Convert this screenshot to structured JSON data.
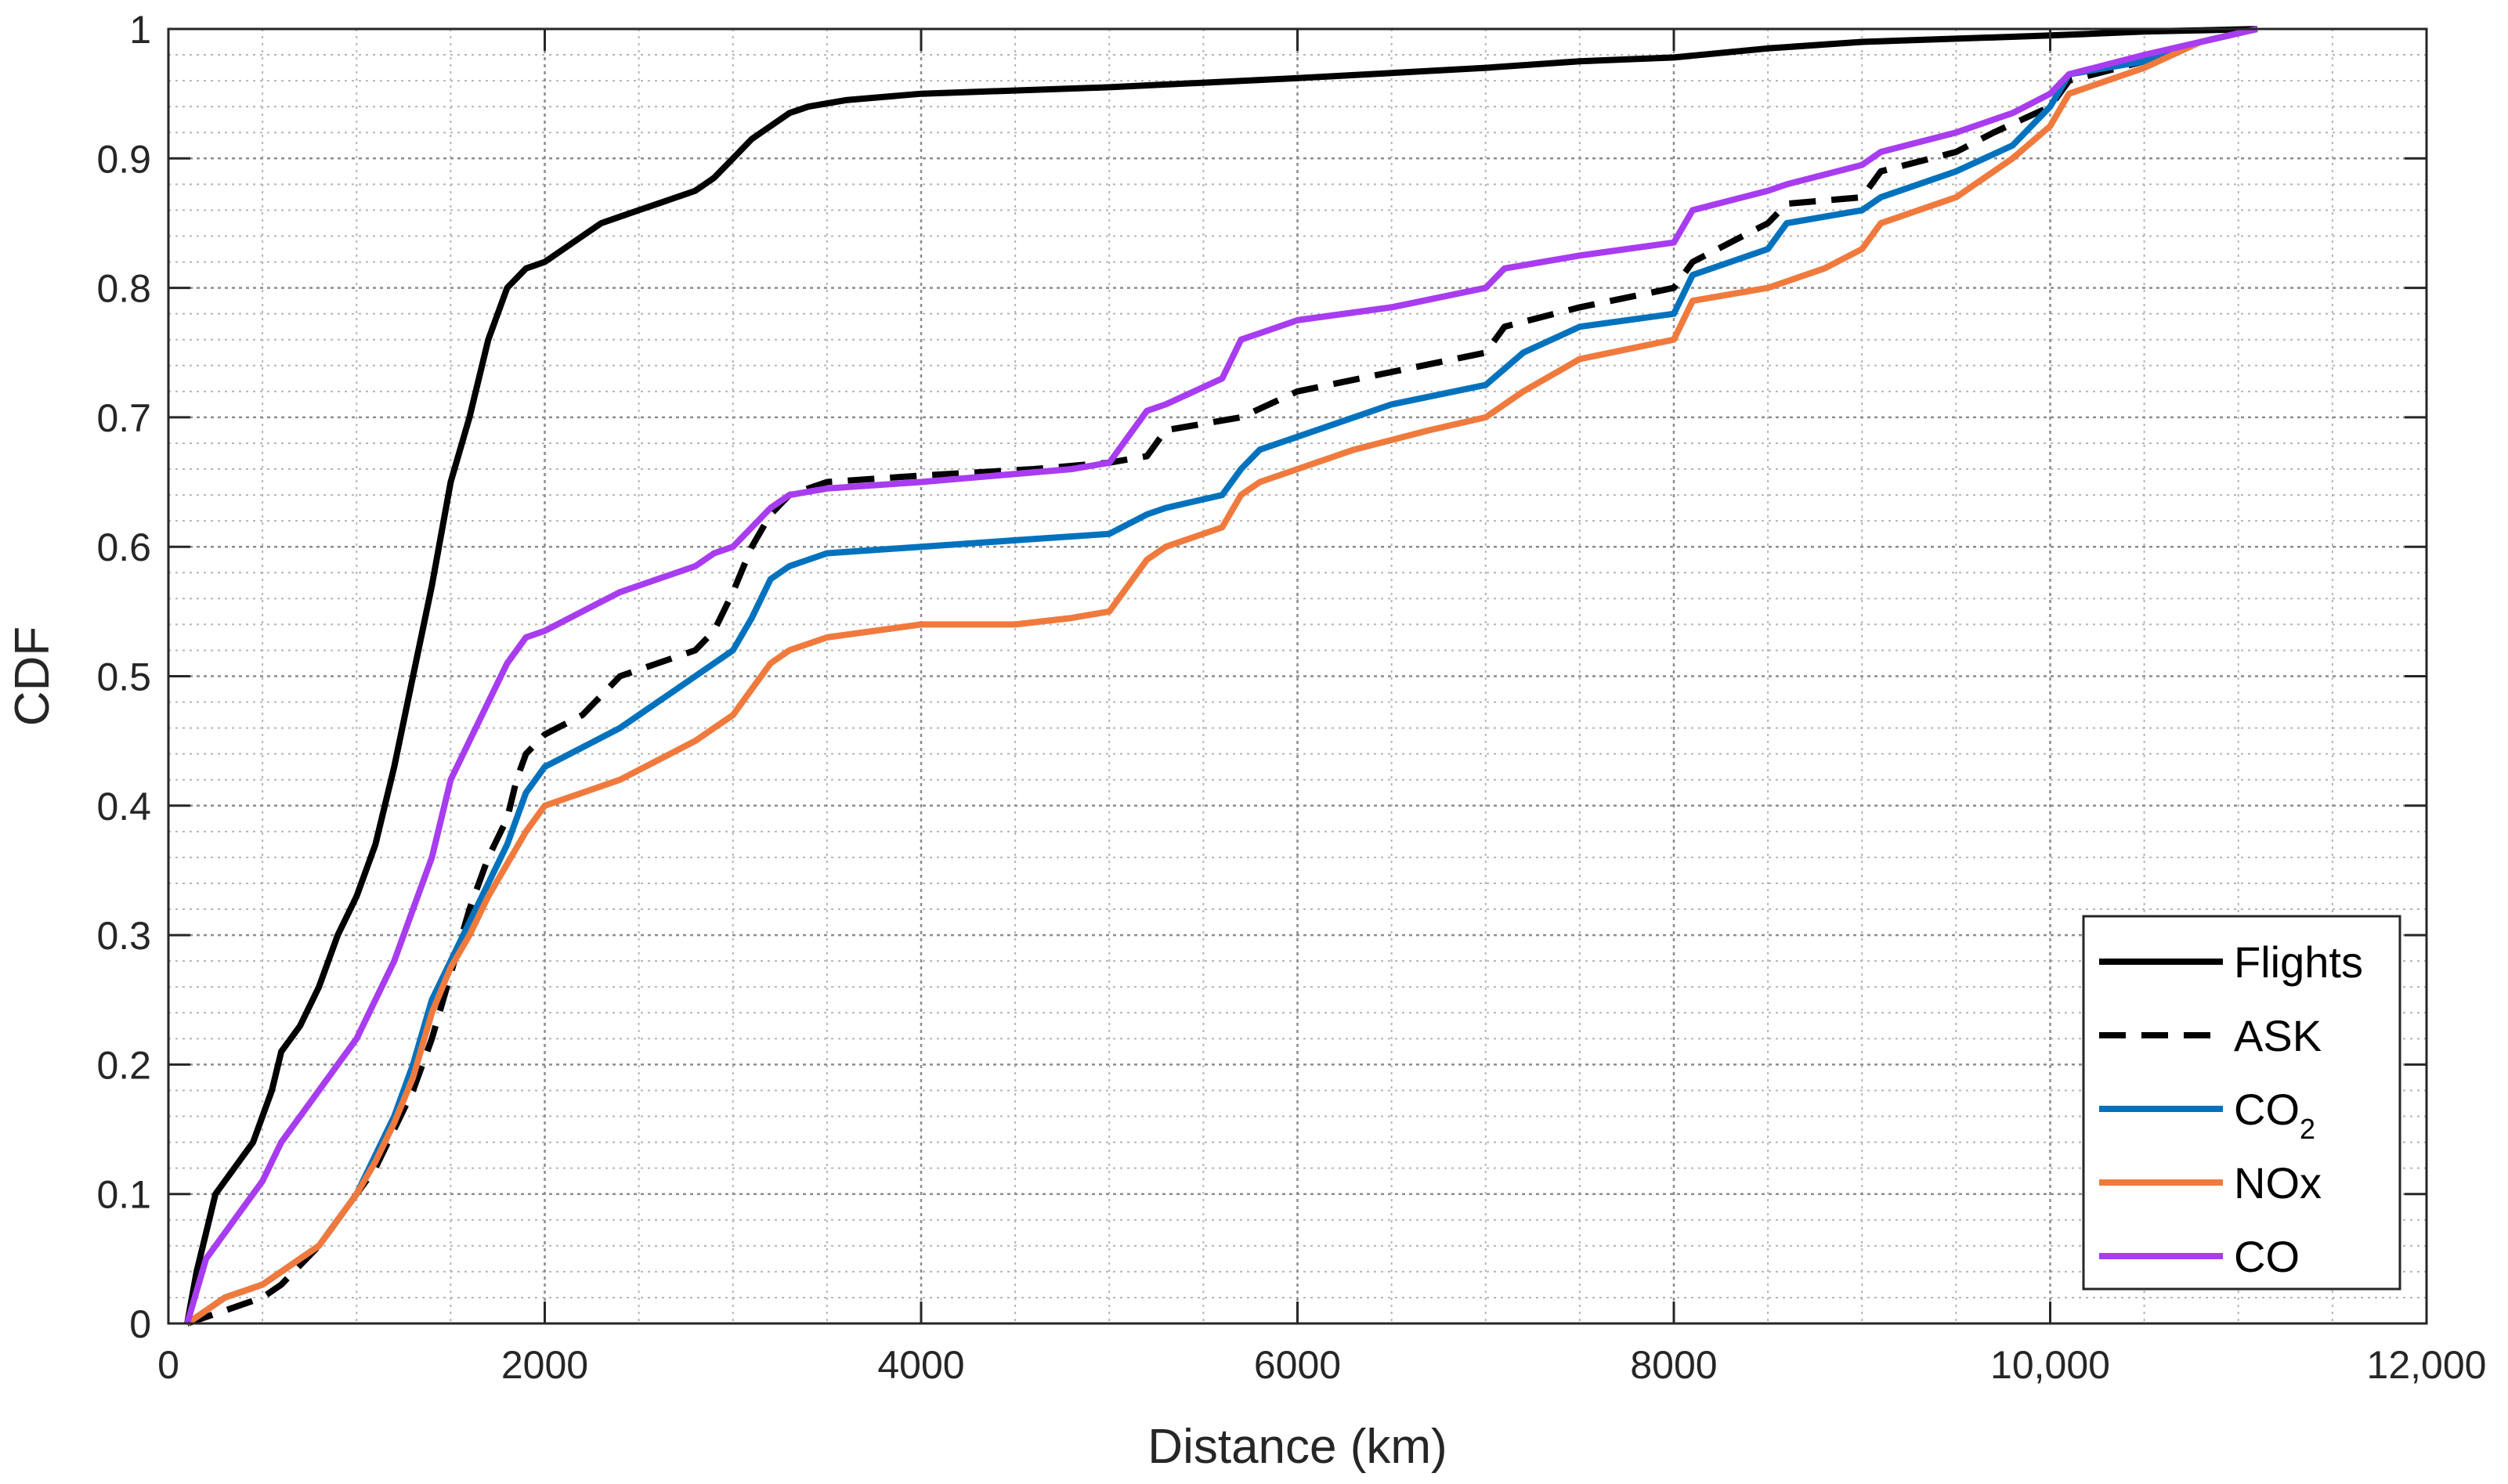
{
  "chart_data": {
    "type": "line",
    "xlabel": "Distance (km)",
    "ylabel": "CDF",
    "xlim": [
      0,
      12000
    ],
    "ylim": [
      0,
      1
    ],
    "x_ticks": [
      0,
      2000,
      4000,
      6000,
      8000,
      10000,
      12000
    ],
    "x_tick_labels": [
      "0",
      "2000",
      "4000",
      "6000",
      "8000",
      "10,000",
      "12,000"
    ],
    "y_ticks": [
      0,
      0.1,
      0.2,
      0.3,
      0.4,
      0.5,
      0.6,
      0.7,
      0.8,
      0.9,
      1
    ],
    "y_tick_labels": [
      "0",
      "0.1",
      "0.2",
      "0.3",
      "0.4",
      "0.5",
      "0.6",
      "0.7",
      "0.8",
      "0.9",
      "1"
    ],
    "grid": "major and minor, dotted",
    "legend_position": "bottom-right",
    "series": [
      {
        "name": "Flights",
        "color": "#000000",
        "dash": "solid",
        "x": [
          100,
          150,
          200,
          250,
          300,
          400,
          450,
          500,
          550,
          600,
          700,
          800,
          900,
          1000,
          1100,
          1200,
          1300,
          1400,
          1500,
          1600,
          1700,
          1800,
          1900,
          2000,
          2100,
          2200,
          2300,
          2400,
          2500,
          2600,
          2700,
          2800,
          2900,
          3000,
          3100,
          3200,
          3300,
          3400,
          3600,
          4000,
          5000,
          6000,
          7000,
          7500,
          8000,
          8500,
          9000,
          10000,
          10500,
          10800,
          11100
        ],
        "y": [
          0,
          0.04,
          0.07,
          0.1,
          0.11,
          0.13,
          0.14,
          0.16,
          0.18,
          0.21,
          0.23,
          0.26,
          0.3,
          0.33,
          0.37,
          0.43,
          0.5,
          0.57,
          0.65,
          0.7,
          0.76,
          0.8,
          0.815,
          0.82,
          0.83,
          0.84,
          0.85,
          0.855,
          0.86,
          0.865,
          0.87,
          0.875,
          0.885,
          0.9,
          0.915,
          0.925,
          0.935,
          0.94,
          0.945,
          0.95,
          0.955,
          0.962,
          0.97,
          0.975,
          0.978,
          0.985,
          0.99,
          0.995,
          0.998,
          0.999,
          1
        ]
      },
      {
        "name": "ASK",
        "color": "#000000",
        "dash": "dashed",
        "x": [
          100,
          200,
          300,
          400,
          500,
          600,
          700,
          800,
          900,
          1000,
          1100,
          1200,
          1300,
          1400,
          1500,
          1600,
          1700,
          1800,
          1850,
          1900,
          2000,
          2200,
          2400,
          2600,
          2800,
          2900,
          3000,
          3100,
          3200,
          3300,
          3500,
          4000,
          4600,
          5000,
          5200,
          5300,
          5700,
          6000,
          6500,
          7000,
          7100,
          7500,
          8000,
          8100,
          8500,
          8600,
          9000,
          9100,
          9500,
          9700,
          10000,
          10100,
          10500,
          10800,
          11100
        ],
        "y": [
          0,
          0.005,
          0.01,
          0.015,
          0.02,
          0.03,
          0.045,
          0.06,
          0.08,
          0.1,
          0.12,
          0.15,
          0.18,
          0.22,
          0.27,
          0.32,
          0.36,
          0.39,
          0.42,
          0.44,
          0.455,
          0.47,
          0.5,
          0.51,
          0.52,
          0.535,
          0.565,
          0.6,
          0.625,
          0.64,
          0.65,
          0.655,
          0.66,
          0.665,
          0.67,
          0.69,
          0.7,
          0.72,
          0.735,
          0.75,
          0.77,
          0.785,
          0.8,
          0.82,
          0.85,
          0.865,
          0.87,
          0.89,
          0.905,
          0.92,
          0.94,
          0.96,
          0.975,
          0.99,
          1
        ]
      },
      {
        "name": "CO2",
        "color": "#0072BD",
        "dash": "solid",
        "x": [
          100,
          200,
          300,
          400,
          500,
          600,
          700,
          800,
          900,
          1000,
          1100,
          1200,
          1300,
          1400,
          1500,
          1600,
          1700,
          1800,
          1900,
          2000,
          2200,
          2400,
          2600,
          2800,
          3000,
          3100,
          3200,
          3300,
          3500,
          4000,
          4500,
          5000,
          5200,
          5300,
          5600,
          5700,
          5800,
          6000,
          6200,
          6500,
          7000,
          7200,
          7500,
          8000,
          8100,
          8500,
          8600,
          9000,
          9100,
          9500,
          9800,
          10000,
          10100,
          10500,
          10800,
          11100
        ],
        "y": [
          0,
          0.01,
          0.02,
          0.025,
          0.03,
          0.04,
          0.05,
          0.06,
          0.08,
          0.1,
          0.13,
          0.16,
          0.2,
          0.25,
          0.28,
          0.31,
          0.34,
          0.37,
          0.41,
          0.43,
          0.445,
          0.46,
          0.48,
          0.5,
          0.52,
          0.545,
          0.575,
          0.585,
          0.595,
          0.6,
          0.605,
          0.61,
          0.625,
          0.63,
          0.64,
          0.66,
          0.675,
          0.685,
          0.695,
          0.71,
          0.725,
          0.75,
          0.77,
          0.78,
          0.81,
          0.83,
          0.85,
          0.86,
          0.87,
          0.89,
          0.91,
          0.94,
          0.965,
          0.975,
          0.99,
          1
        ]
      },
      {
        "name": "NOx",
        "color": "#F07A3D",
        "dash": "solid",
        "x": [
          100,
          200,
          300,
          400,
          500,
          600,
          700,
          800,
          900,
          1000,
          1100,
          1200,
          1300,
          1400,
          1500,
          1600,
          1700,
          1800,
          1900,
          2000,
          2200,
          2400,
          2600,
          2800,
          2900,
          3000,
          3100,
          3200,
          3300,
          3500,
          4000,
          4500,
          4800,
          5000,
          5200,
          5300,
          5600,
          5700,
          5800,
          6000,
          6300,
          6700,
          7000,
          7200,
          7500,
          8000,
          8100,
          8500,
          8800,
          9000,
          9100,
          9500,
          9800,
          10000,
          10100,
          10500,
          10800,
          11100
        ],
        "y": [
          0,
          0.01,
          0.02,
          0.025,
          0.03,
          0.04,
          0.05,
          0.06,
          0.08,
          0.1,
          0.125,
          0.155,
          0.19,
          0.24,
          0.275,
          0.3,
          0.33,
          0.355,
          0.38,
          0.4,
          0.41,
          0.42,
          0.435,
          0.45,
          0.46,
          0.47,
          0.49,
          0.51,
          0.52,
          0.53,
          0.54,
          0.54,
          0.545,
          0.55,
          0.59,
          0.6,
          0.615,
          0.64,
          0.65,
          0.66,
          0.675,
          0.69,
          0.7,
          0.72,
          0.745,
          0.76,
          0.79,
          0.8,
          0.815,
          0.83,
          0.85,
          0.87,
          0.9,
          0.925,
          0.95,
          0.97,
          0.99,
          1
        ]
      },
      {
        "name": "CO",
        "color": "#A83CF0",
        "dash": "solid",
        "x": [
          100,
          200,
          300,
          400,
          500,
          600,
          700,
          800,
          900,
          1000,
          1100,
          1200,
          1300,
          1400,
          1500,
          1600,
          1700,
          1800,
          1900,
          2000,
          2200,
          2400,
          2600,
          2800,
          2900,
          3000,
          3100,
          3200,
          3300,
          3500,
          4000,
          4800,
          5000,
          5200,
          5300,
          5600,
          5700,
          5800,
          6000,
          6500,
          7000,
          7100,
          7500,
          8000,
          8100,
          8500,
          8600,
          9000,
          9100,
          9500,
          9800,
          10000,
          10100,
          10500,
          10800,
          11100
        ],
        "y": [
          0,
          0.05,
          0.07,
          0.09,
          0.11,
          0.14,
          0.16,
          0.18,
          0.2,
          0.22,
          0.25,
          0.28,
          0.32,
          0.36,
          0.42,
          0.45,
          0.48,
          0.51,
          0.53,
          0.535,
          0.55,
          0.565,
          0.575,
          0.585,
          0.595,
          0.6,
          0.615,
          0.63,
          0.64,
          0.645,
          0.65,
          0.66,
          0.665,
          0.705,
          0.71,
          0.73,
          0.76,
          0.765,
          0.775,
          0.785,
          0.8,
          0.815,
          0.825,
          0.835,
          0.86,
          0.875,
          0.88,
          0.895,
          0.905,
          0.92,
          0.935,
          0.95,
          0.965,
          0.98,
          0.99,
          1
        ]
      }
    ]
  },
  "legend": {
    "items": [
      {
        "label": "Flights",
        "sub": ""
      },
      {
        "label": "ASK",
        "sub": ""
      },
      {
        "label": "CO",
        "sub": "2"
      },
      {
        "label": "NOx",
        "sub": ""
      },
      {
        "label": "CO",
        "sub": ""
      }
    ]
  }
}
